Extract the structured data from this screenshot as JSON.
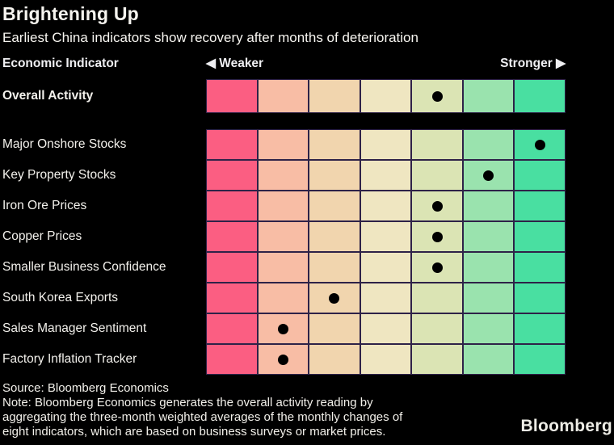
{
  "title": "Brightening Up",
  "subtitle": "Earliest China indicators show recovery after months of deterioration",
  "header": {
    "indicator": "Economic Indicator",
    "weaker": "◀ Weaker",
    "stronger": "Stronger ▶"
  },
  "chart_data": {
    "type": "heatmap",
    "scale": {
      "cells": 7,
      "left_label": "Weaker",
      "right_label": "Stronger"
    },
    "palette": [
      "#FB5E82",
      "#F8BDA5",
      "#F1D5AE",
      "#EFE6C1",
      "#DBE4B4",
      "#9AE3AE",
      "#49DFA1"
    ],
    "dot_color": "#000000",
    "cell_border_color": "#2E2248",
    "rows": [
      {
        "label": "Overall Activity",
        "reading": 5,
        "emphasis": true
      },
      {
        "label": "Major Onshore Stocks",
        "reading": 7,
        "emphasis": false
      },
      {
        "label": "Key Property Stocks",
        "reading": 6,
        "emphasis": false
      },
      {
        "label": "Iron Ore Prices",
        "reading": 5,
        "emphasis": false
      },
      {
        "label": "Copper Prices",
        "reading": 5,
        "emphasis": false
      },
      {
        "label": "Smaller Business Confidence",
        "reading": 5,
        "emphasis": false
      },
      {
        "label": "South Korea Exports",
        "reading": 3,
        "emphasis": false
      },
      {
        "label": "Sales Manager Sentiment",
        "reading": 2,
        "emphasis": false
      },
      {
        "label": "Factory Inflation Tracker",
        "reading": 2,
        "emphasis": false
      }
    ]
  },
  "footer": {
    "source": "Source: Bloomberg Economics",
    "note_lines": [
      "Note: Bloomberg Economics generates the overall activity reading by",
      "aggregating the three-month weighted averages of the monthly changes of",
      "eight indicators, which are based on business surveys or market prices."
    ],
    "logo": "Bloomberg"
  }
}
